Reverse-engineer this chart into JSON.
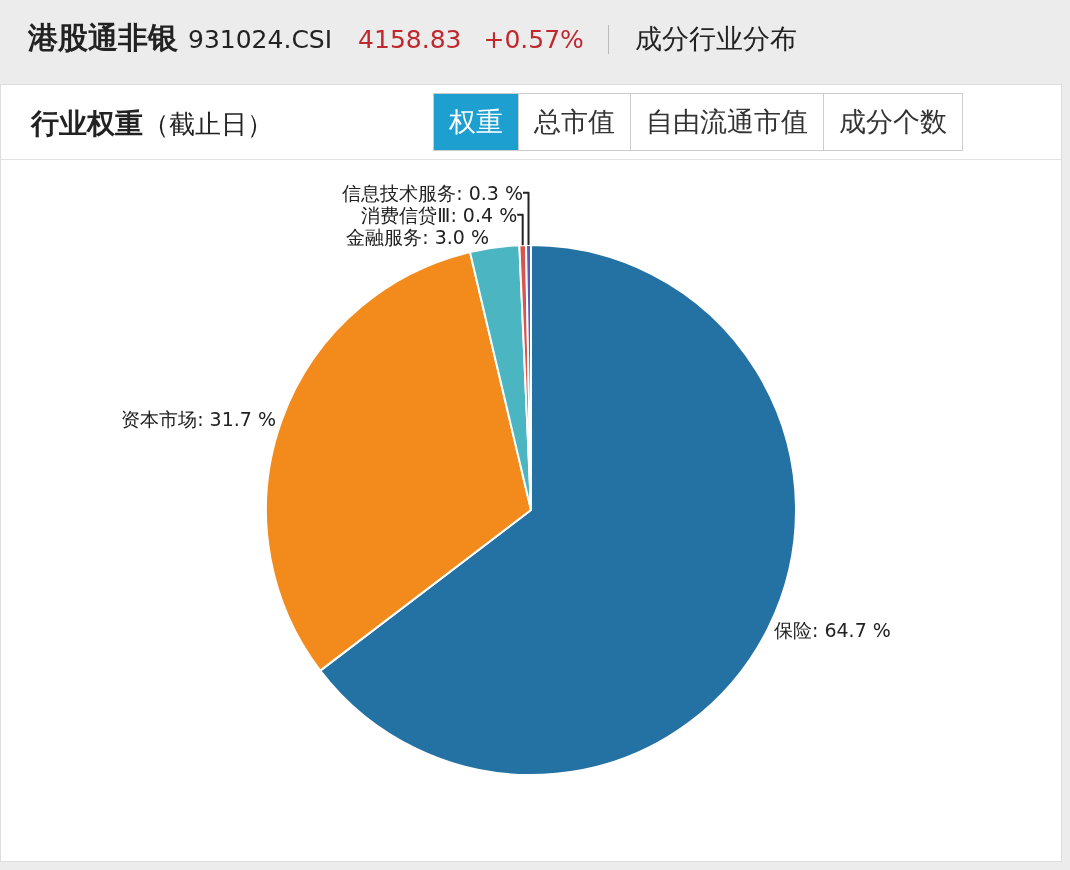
{
  "chart_data": {
    "type": "pie",
    "title": "港股通非银",
    "subtitle": "行业权重",
    "annotations": [
      "931024.CSI",
      "4158.83",
      "+0.57%",
      "成分行业分布",
      "（截止日）",
      "权重",
      "总市值",
      "自由流通市值",
      "成分个数"
    ],
    "categories": [
      "保险",
      "资本市场",
      "金融服务",
      "消费信贷Ⅲ",
      "信息技术服务"
    ],
    "values": [
      64.7,
      31.7,
      3.0,
      0.4,
      0.3
    ],
    "value_labels": [
      "64.7 %",
      "31.7 %",
      "3.0 %",
      "0.4 %",
      "0.3 %"
    ],
    "colors": [
      "#2471a3",
      "#f28a1c",
      "#4bb5c1",
      "#d9534f",
      "#5b5bb5"
    ],
    "legend": false
  }
}
